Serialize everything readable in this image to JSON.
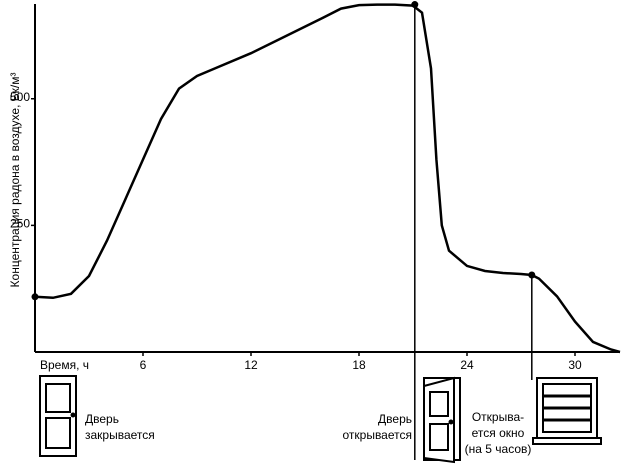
{
  "chart_data": {
    "type": "line",
    "y_label": "Концентрация радона в воздухе, Бк/м³",
    "x_label": "Время, ч",
    "xlim": [
      0,
      32.5
    ],
    "xticks": [
      6,
      12,
      18,
      24,
      30
    ],
    "ylim": [
      0,
      695
    ],
    "yticks": [
      250,
      500
    ],
    "color": "#000000",
    "x": [
      0,
      1,
      2,
      3,
      4,
      5,
      6,
      7,
      8,
      9,
      10,
      12,
      14,
      16,
      17,
      18,
      19,
      20,
      21,
      21.5,
      22,
      22.3,
      22.6,
      23,
      24,
      25,
      26,
      27,
      27.6,
      28,
      29,
      30,
      31,
      32,
      32.5
    ],
    "values": [
      109,
      107,
      115,
      150,
      220,
      300,
      380,
      460,
      520,
      545,
      560,
      590,
      625,
      660,
      678,
      685,
      686,
      686,
      684,
      670,
      560,
      380,
      250,
      200,
      170,
      160,
      156,
      154,
      152,
      145,
      110,
      60,
      20,
      5,
      0
    ],
    "events": [
      {
        "x": 0,
        "y": 109,
        "text": [
          "Дверь",
          "закрывается"
        ]
      },
      {
        "x": 21.1,
        "y": 686,
        "text": [
          "Дверь",
          "открывается"
        ]
      },
      {
        "x": 27.6,
        "y": 152,
        "text": [
          "Открыва-",
          "ется окно",
          "(на 5 часов)"
        ]
      }
    ]
  }
}
